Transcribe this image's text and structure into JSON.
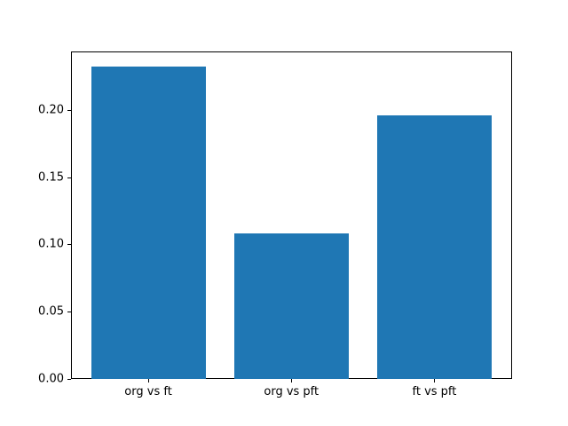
{
  "chart_data": {
    "type": "bar",
    "categories": [
      "org vs ft",
      "org vs pft",
      "ft vs pft"
    ],
    "values": [
      0.232,
      0.108,
      0.196
    ],
    "title": "",
    "xlabel": "",
    "ylabel": "",
    "ylim": [
      0,
      0.2436
    ],
    "xlim": [
      -0.54,
      2.54
    ],
    "bar_half_width": 0.4,
    "ytick_labels": [
      "0.00",
      "0.05",
      "0.10",
      "0.15",
      "0.20"
    ],
    "ytick_values": [
      0.0,
      0.05,
      0.1,
      0.15,
      0.2
    ],
    "grid": false,
    "legend_position": "none"
  },
  "colors": {
    "bar": "#1f77b4",
    "spine": "#000000",
    "text": "#000000",
    "background": "#ffffff"
  }
}
